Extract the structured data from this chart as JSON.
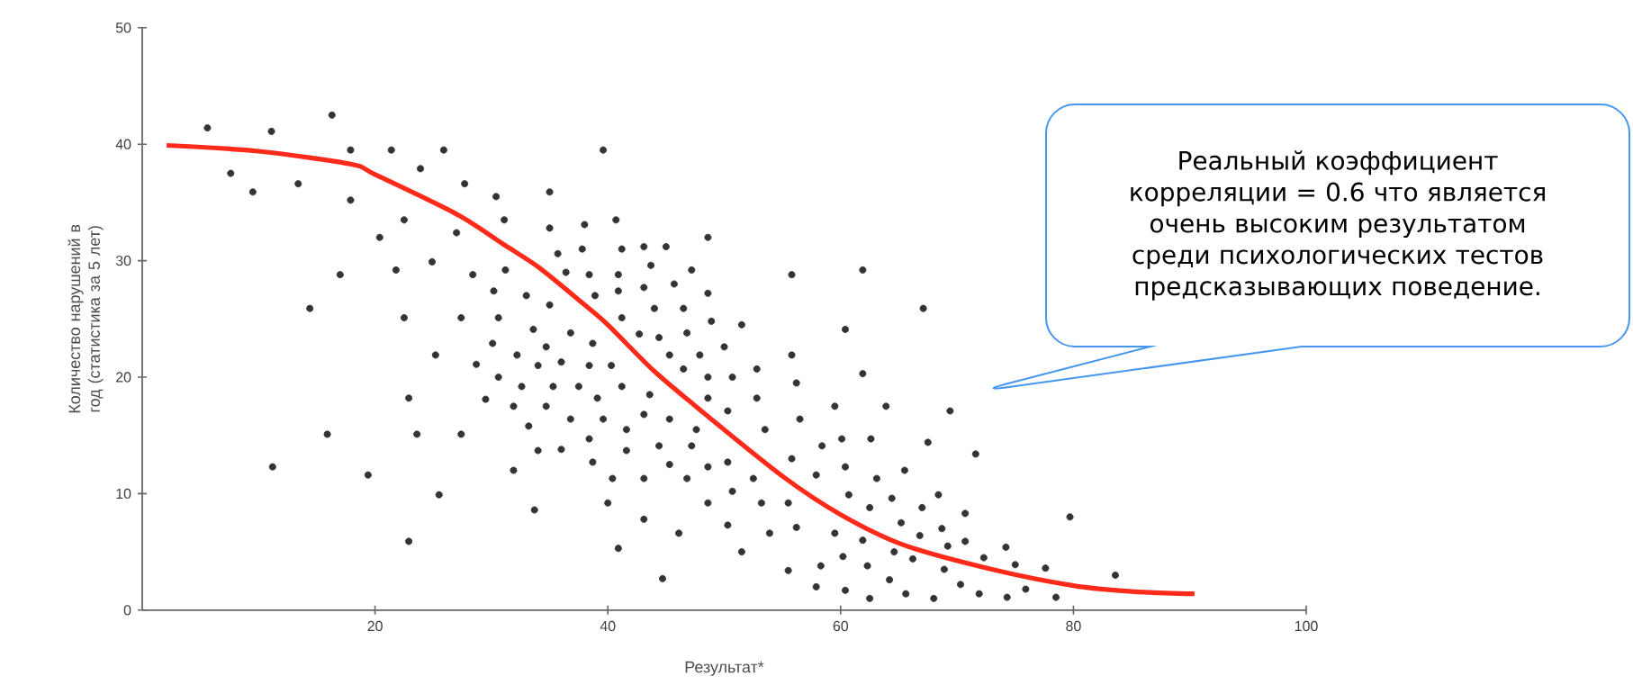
{
  "chart_data": {
    "type": "scatter",
    "xlabel": "Результат*",
    "ylabel": "Количество нарушений в год (статистика за 5 лет)",
    "annotations": [
      "Реальный коэффициент корреляции = 0.6 что является очень высоким результатом среди психологических тестов предсказывающих поведение."
    ],
    "xlim": [
      0,
      100
    ],
    "ylim": [
      0,
      50
    ],
    "xticks": [
      20,
      40,
      60,
      80,
      100
    ],
    "yticks": [
      0,
      10,
      20,
      30,
      40,
      50
    ],
    "series": [
      {
        "type": "scatter",
        "color": "#333333",
        "marker": "circle",
        "x": [
          5.6,
          11.1,
          16.3,
          7.6,
          9.5,
          13.4,
          17.9,
          17.9,
          21.4,
          25.9,
          23.9,
          27.7,
          30.4,
          22.5,
          20.4,
          27.0,
          31.1,
          17.0,
          21.8,
          24.9,
          28.4,
          31.2,
          30.2,
          33.0,
          14.4,
          22.5,
          27.4,
          30.6,
          33.6,
          30.1,
          25.2,
          28.7,
          32.2,
          34.0,
          30.6,
          32.6,
          22.9,
          29.5,
          31.9,
          33.2,
          15.9,
          23.6,
          27.4,
          34.0,
          11.2,
          19.4,
          31.9,
          25.5,
          33.7,
          22.9,
          39.6,
          35.0,
          35.0,
          38.0,
          40.7,
          35.7,
          37.8,
          41.2,
          43.1,
          45.0,
          48.6,
          36.4,
          38.4,
          40.9,
          43.7,
          47.2,
          35.0,
          38.9,
          40.9,
          43.1,
          45.7,
          48.6,
          41.2,
          44.0,
          46.5,
          48.9,
          51.5,
          55.8,
          61.9,
          67.1,
          60.4,
          36.8,
          34.7,
          38.7,
          42.7,
          44.4,
          46.8,
          50.0,
          36.0,
          38.4,
          40.3,
          45.3,
          47.9,
          55.8,
          46.5,
          52.8,
          61.9,
          35.3,
          37.5,
          41.2,
          48.6,
          50.7,
          56.2,
          34.7,
          39.1,
          43.6,
          48.6,
          52.8,
          36.8,
          39.6,
          43.1,
          45.3,
          50.3,
          56.5,
          59.5,
          63.9,
          69.4,
          38.4,
          41.6,
          47.6,
          53.5,
          36.0,
          41.6,
          44.4,
          47.2,
          58.4,
          60.1,
          62.6,
          67.5,
          71.6,
          38.7,
          45.3,
          48.6,
          50.3,
          55.8,
          40.4,
          43.1,
          46.8,
          52.5,
          57.9,
          60.4,
          63.1,
          65.5,
          40.0,
          48.6,
          50.7,
          53.2,
          55.5,
          60.7,
          62.5,
          64.4,
          67.0,
          68.4,
          70.7,
          43.1,
          46.1,
          50.3,
          53.9,
          56.2,
          59.5,
          61.9,
          65.2,
          66.8,
          68.7,
          40.9,
          51.5,
          69.2,
          70.7,
          64.6,
          66.2,
          60.2,
          58.3,
          62.3,
          55.5,
          68.9,
          72.3,
          44.7,
          64.2,
          70.3,
          57.9,
          60.4,
          62.5,
          65.6,
          68.0,
          71.9,
          74.2,
          75.0,
          77.6,
          75.9,
          74.3,
          78.5,
          79.7,
          83.6
        ],
        "values": [
          41.4,
          41.1,
          42.5,
          37.5,
          35.9,
          36.6,
          39.5,
          35.2,
          39.5,
          39.5,
          37.9,
          36.6,
          35.5,
          33.5,
          32.0,
          32.4,
          33.5,
          28.8,
          29.2,
          29.9,
          28.8,
          29.2,
          27.4,
          27.0,
          25.9,
          25.1,
          25.1,
          25.1,
          24.1,
          22.9,
          21.9,
          21.1,
          21.9,
          21.0,
          20.0,
          19.2,
          18.2,
          18.1,
          17.5,
          15.8,
          15.1,
          15.1,
          15.1,
          13.7,
          12.3,
          11.6,
          12.0,
          9.9,
          8.6,
          5.9,
          39.5,
          35.9,
          32.8,
          33.1,
          33.5,
          30.6,
          31.0,
          31.0,
          31.2,
          31.2,
          32.0,
          29.0,
          28.8,
          28.8,
          29.6,
          29.2,
          26.2,
          27.0,
          27.4,
          27.7,
          28.0,
          27.2,
          25.1,
          25.9,
          25.9,
          24.8,
          24.5,
          28.8,
          29.2,
          25.9,
          24.1,
          23.8,
          22.6,
          22.9,
          23.7,
          23.4,
          23.8,
          22.6,
          21.3,
          21.0,
          21.0,
          21.9,
          21.9,
          21.9,
          20.7,
          20.7,
          20.3,
          19.2,
          19.2,
          19.2,
          20.0,
          20.0,
          19.5,
          17.5,
          18.2,
          18.5,
          18.2,
          18.2,
          16.4,
          16.4,
          16.8,
          16.4,
          17.1,
          16.4,
          17.5,
          17.5,
          17.1,
          14.7,
          15.5,
          15.5,
          15.5,
          13.8,
          13.7,
          14.1,
          14.1,
          14.1,
          14.7,
          14.7,
          14.4,
          13.4,
          12.7,
          12.5,
          12.3,
          12.7,
          13.0,
          11.3,
          11.3,
          11.3,
          11.3,
          11.6,
          12.3,
          11.3,
          12.0,
          9.2,
          9.2,
          10.2,
          9.2,
          9.2,
          9.9,
          8.8,
          9.6,
          8.8,
          9.9,
          8.3,
          7.8,
          6.6,
          7.3,
          6.6,
          7.1,
          6.6,
          6.0,
          7.5,
          6.4,
          7.0,
          5.3,
          5.0,
          5.5,
          5.9,
          5.0,
          4.4,
          4.6,
          3.8,
          3.8,
          3.4,
          3.5,
          4.5,
          2.7,
          2.6,
          2.2,
          2.0,
          1.7,
          1.0,
          1.4,
          1.0,
          1.4,
          5.4,
          3.9,
          3.6,
          1.8,
          1.1,
          1.1,
          8.0,
          3.0
        ]
      },
      {
        "type": "line",
        "color": "#ff2a1a",
        "marker": "none",
        "line_style": "solid",
        "x": [
          2.1,
          10,
          17.9,
          20,
          27,
          31.2,
          34.1,
          37.9,
          40,
          44,
          48.4,
          55,
          60,
          65.4,
          73,
          80,
          85,
          90.4
        ],
        "values": [
          39.9,
          39.4,
          38.3,
          37.4,
          34.0,
          31.3,
          29.4,
          26.3,
          24.5,
          20.5,
          16.8,
          11.5,
          8.2,
          5.6,
          3.5,
          2.1,
          1.6,
          1.4
        ]
      }
    ]
  }
}
